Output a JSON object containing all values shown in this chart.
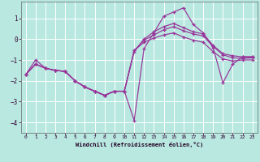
{
  "xlabel": "Windchill (Refroidissement éolien,°C)",
  "bg_color": "#b8e8e0",
  "grid_color": "#ffffff",
  "line_color": "#993399",
  "xlim": [
    -0.5,
    23.5
  ],
  "ylim": [
    -4.5,
    1.8
  ],
  "xticks": [
    0,
    1,
    2,
    3,
    4,
    5,
    6,
    7,
    8,
    9,
    10,
    11,
    12,
    13,
    14,
    15,
    16,
    17,
    18,
    19,
    20,
    21,
    22,
    23
  ],
  "yticks": [
    -4,
    -3,
    -2,
    -1,
    0,
    1
  ],
  "x": [
    0,
    1,
    2,
    3,
    4,
    5,
    6,
    7,
    8,
    9,
    10,
    11,
    12,
    13,
    14,
    15,
    16,
    17,
    18,
    19,
    20,
    21,
    22,
    23
  ],
  "line1": [
    -1.7,
    -1.2,
    -1.4,
    -1.5,
    -1.55,
    -2.0,
    -2.3,
    -2.5,
    -2.7,
    -2.5,
    -2.5,
    -3.9,
    -0.45,
    0.3,
    1.1,
    1.3,
    1.5,
    0.7,
    0.3,
    -0.4,
    -2.1,
    -1.2,
    -0.85,
    -0.85
  ],
  "line2": [
    -1.7,
    -1.2,
    -1.4,
    -1.5,
    -1.55,
    -2.0,
    -2.3,
    -2.5,
    -2.7,
    -2.5,
    -2.5,
    -0.6,
    0.0,
    0.35,
    0.6,
    0.75,
    0.55,
    0.35,
    0.25,
    -0.3,
    -0.7,
    -0.8,
    -0.85,
    -0.85
  ],
  "line3": [
    -1.7,
    -1.2,
    -1.4,
    -1.5,
    -1.55,
    -2.0,
    -2.3,
    -2.5,
    -2.7,
    -2.5,
    -2.5,
    -0.55,
    -0.05,
    0.2,
    0.45,
    0.6,
    0.4,
    0.25,
    0.15,
    -0.35,
    -0.75,
    -0.9,
    -0.92,
    -0.9
  ],
  "line4": [
    -1.7,
    -1.0,
    -1.4,
    -1.5,
    -1.55,
    -2.0,
    -2.3,
    -2.5,
    -2.7,
    -2.5,
    -2.5,
    -0.55,
    -0.15,
    0.05,
    0.2,
    0.3,
    0.1,
    -0.05,
    -0.15,
    -0.6,
    -0.95,
    -1.05,
    -1.0,
    -1.0
  ]
}
